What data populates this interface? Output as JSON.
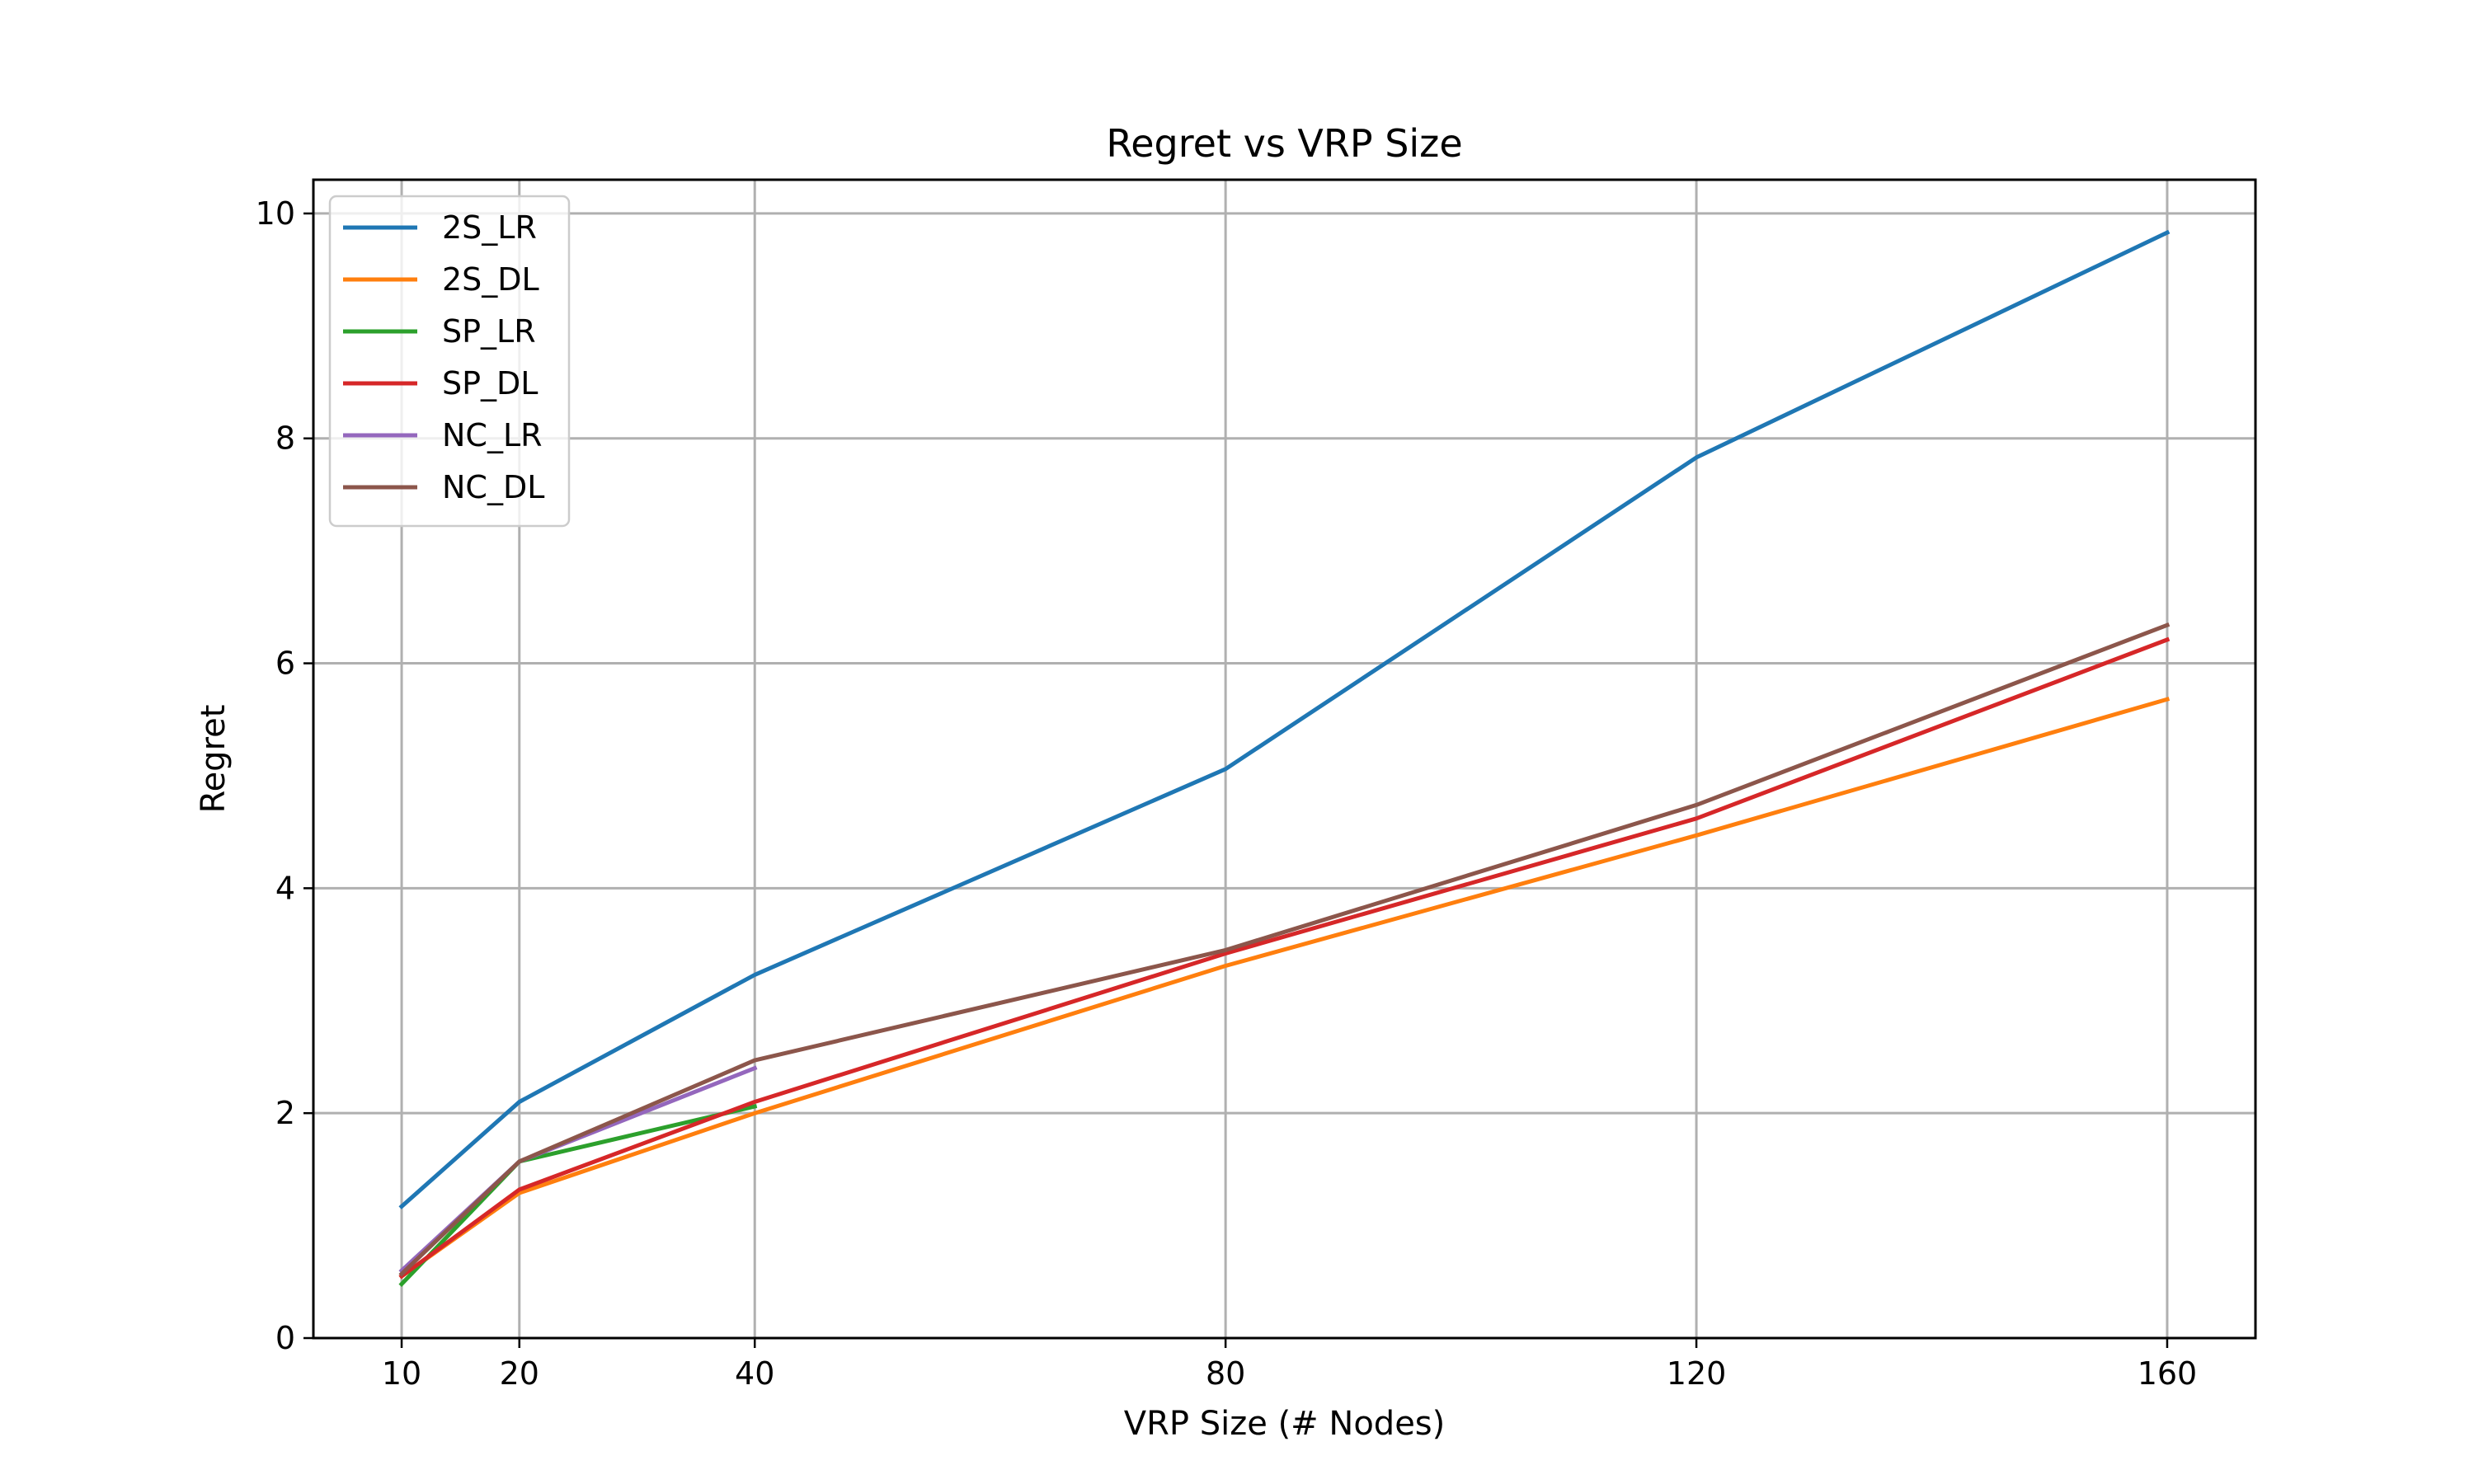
{
  "chart_data": {
    "type": "line",
    "title": "Regret vs VRP Size",
    "xlabel": "VRP Size (# Nodes)",
    "ylabel": "Regret",
    "x_ticks": [
      10,
      20,
      40,
      80,
      120,
      160
    ],
    "y_ticks": [
      0,
      2,
      4,
      6,
      8,
      10
    ],
    "xlim": [
      2.5,
      167.5
    ],
    "ylim": [
      0,
      10.3
    ],
    "grid": true,
    "legend_position": "top-left",
    "series": [
      {
        "name": "2S_LR",
        "color": "#1f77b4",
        "x": [
          10,
          20,
          40,
          80,
          120,
          160
        ],
        "y": [
          1.17,
          2.1,
          3.23,
          5.06,
          7.83,
          9.83
        ]
      },
      {
        "name": "2S_DL",
        "color": "#ff7f0e",
        "x": [
          10,
          20,
          40,
          80,
          120,
          160
        ],
        "y": [
          0.55,
          1.29,
          2.0,
          3.31,
          4.47,
          5.68
        ]
      },
      {
        "name": "SP_LR",
        "color": "#2ca02c",
        "x": [
          10,
          20,
          40
        ],
        "y": [
          0.48,
          1.57,
          2.06
        ]
      },
      {
        "name": "SP_DL",
        "color": "#d62728",
        "x": [
          10,
          20,
          40,
          80,
          120,
          160
        ],
        "y": [
          0.55,
          1.32,
          2.1,
          3.42,
          4.62,
          6.21
        ]
      },
      {
        "name": "NC_LR",
        "color": "#9467bd",
        "x": [
          10,
          20,
          40
        ],
        "y": [
          0.6,
          1.57,
          2.4
        ]
      },
      {
        "name": "NC_DL",
        "color": "#8c564b",
        "x": [
          10,
          20,
          40,
          80,
          120,
          160
        ],
        "y": [
          0.57,
          1.57,
          2.47,
          3.45,
          4.74,
          6.34
        ]
      }
    ]
  }
}
